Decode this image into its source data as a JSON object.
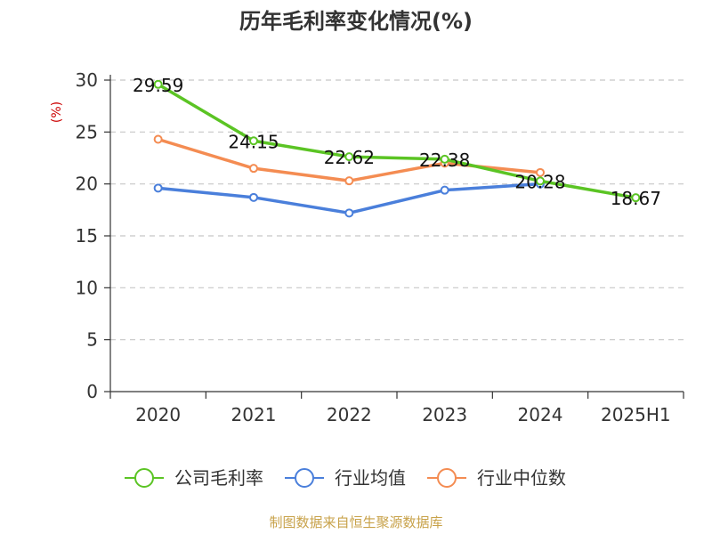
{
  "chart_data": {
    "type": "line",
    "title": "历年毛利率变化情况(%)",
    "ylabel": "(%)",
    "xlabel": "",
    "categories": [
      "2020",
      "2021",
      "2022",
      "2023",
      "2024",
      "2025H1"
    ],
    "ylim": [
      0,
      30
    ],
    "yticks": [
      0,
      5,
      10,
      15,
      20,
      25,
      30
    ],
    "grid": "horizontal dashed",
    "legend_position": "bottom",
    "series": [
      {
        "name": "公司毛利率",
        "color": "#5bc424",
        "values": [
          29.59,
          24.15,
          22.62,
          22.38,
          20.28,
          18.67
        ],
        "labels": [
          "29.59",
          "24.15",
          "22.62",
          "22.38",
          "20.28",
          "18.67"
        ]
      },
      {
        "name": "行业均值",
        "color": "#4a7fdb",
        "values": [
          19.6,
          18.7,
          17.2,
          19.4,
          20.0,
          null
        ]
      },
      {
        "name": "行业中位数",
        "color": "#f48c52",
        "values": [
          24.3,
          21.5,
          20.3,
          22.0,
          21.1,
          null
        ]
      }
    ],
    "source": "制图数据来自恒生聚源数据库"
  }
}
